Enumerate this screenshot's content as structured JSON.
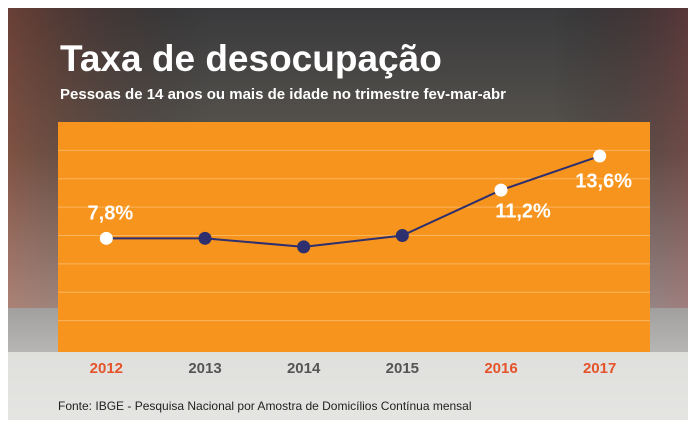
{
  "chart_data": {
    "type": "line",
    "title": "Taxa de desocupação",
    "subtitle": "Pessoas de 14 anos ou mais de idade no trimestre fev-mar-abr",
    "source": "Fonte: IBGE - Pesquisa Nacional por Amostra de Domicílios Contínua mensal",
    "categories": [
      "2012",
      "2013",
      "2014",
      "2015",
      "2016",
      "2017"
    ],
    "values": [
      7.8,
      7.8,
      7.2,
      8.0,
      11.2,
      13.6
    ],
    "value_labels": [
      "7,8%",
      null,
      null,
      null,
      "11,2%",
      "13,6%"
    ],
    "color": "#2e2f6e",
    "marker_colors": [
      "#ffffff",
      "#2e2f6e",
      "#2e2f6e",
      "#2e2f6e",
      "#ffffff",
      "#ffffff"
    ],
    "category_label_colors": [
      "#e5532a",
      "#555555",
      "#555555",
      "#555555",
      "#e5532a",
      "#e5532a"
    ],
    "plot_color": "#f7941d",
    "ylim": [
      0,
      16
    ],
    "yticks": [
      2,
      4,
      6,
      8,
      10,
      12,
      14
    ],
    "grid": true
  }
}
